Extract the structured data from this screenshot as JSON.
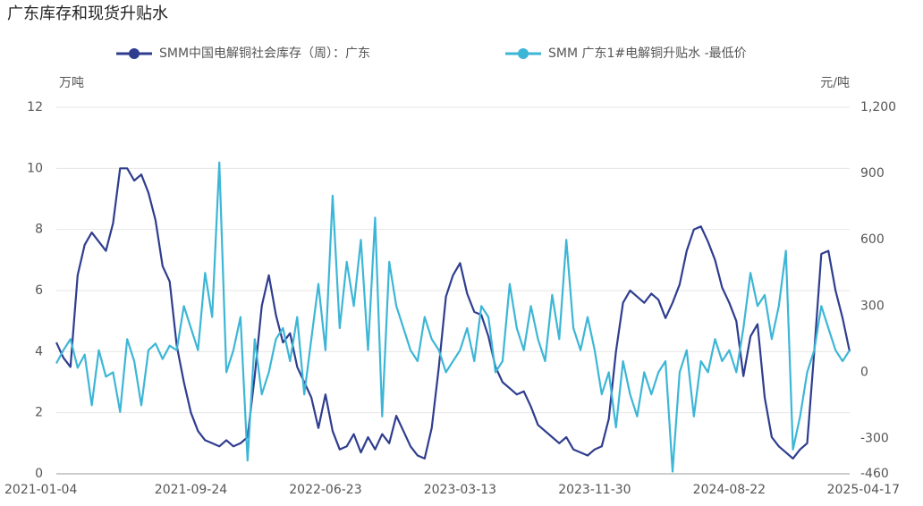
{
  "chart_data": {
    "type": "line",
    "title": "广东库存和现货升贴水",
    "ylabel": "万吨",
    "y2label": "元/吨",
    "categories": [
      "2021-01-04",
      null,
      null,
      null,
      null,
      null,
      null,
      null,
      null,
      null,
      null,
      null,
      null,
      null,
      null,
      null,
      null,
      null,
      null,
      "2021-09-24",
      null,
      null,
      null,
      null,
      null,
      null,
      null,
      null,
      null,
      null,
      null,
      null,
      null,
      null,
      null,
      null,
      null,
      null,
      "2022-06-23",
      null,
      null,
      null,
      null,
      null,
      null,
      null,
      null,
      null,
      null,
      null,
      null,
      null,
      null,
      null,
      null,
      null,
      null,
      "2023-03-13",
      null,
      null,
      null,
      null,
      null,
      null,
      null,
      null,
      null,
      null,
      null,
      null,
      null,
      null,
      null,
      null,
      null,
      null,
      "2023-11-30",
      null,
      null,
      null,
      null,
      null,
      null,
      null,
      null,
      null,
      null,
      null,
      null,
      null,
      null,
      null,
      null,
      null,
      null,
      "2024-08-22",
      null,
      null,
      null,
      null,
      null,
      null,
      null,
      null,
      null,
      null,
      null,
      null,
      null,
      null,
      null,
      null,
      "2025-04-17"
    ],
    "series": [
      {
        "name": "SMM中国电解铜社会库存（周）：广东",
        "color": "#2f3d8f",
        "values": [
          4.3,
          3.8,
          3.5,
          6.5,
          7.5,
          7.9,
          7.6,
          7.3,
          8.2,
          10.0,
          10.0,
          9.6,
          9.8,
          9.2,
          8.3,
          6.8,
          6.3,
          4.2,
          3.0,
          2.0,
          1.4,
          1.1,
          1.0,
          0.9,
          1.1,
          0.9,
          1.0,
          1.2,
          3.2,
          5.5,
          6.5,
          5.2,
          4.3,
          4.6,
          3.5,
          3.0,
          2.5,
          1.5,
          2.6,
          1.4,
          0.8,
          0.9,
          1.3,
          0.7,
          1.2,
          0.8,
          1.3,
          1.0,
          1.9,
          1.4,
          0.9,
          0.6,
          0.5,
          1.5,
          3.5,
          5.8,
          6.5,
          6.9,
          5.9,
          5.3,
          5.2,
          4.5,
          3.5,
          3.0,
          2.8,
          2.6,
          2.7,
          2.2,
          1.6,
          1.4,
          1.2,
          1.0,
          1.2,
          0.8,
          0.7,
          0.6,
          0.8,
          0.9,
          1.8,
          4.0,
          5.6,
          6.0,
          5.8,
          5.6,
          5.9,
          5.7,
          5.1,
          5.6,
          6.2,
          7.3,
          8.0,
          8.1,
          7.6,
          7.0,
          6.1,
          5.6,
          5.0,
          3.2,
          4.5,
          4.9,
          2.5,
          1.2,
          0.9,
          0.7,
          0.5,
          0.8,
          1.0,
          4.0,
          7.2,
          7.3,
          6.0,
          5.1,
          4.0
        ]
      },
      {
        "name": "SMM 广东1#电解铜升贴水 -最低价",
        "color": "#3db6d6",
        "axis": "y2",
        "values": [
          40,
          100,
          150,
          20,
          80,
          -150,
          100,
          -20,
          0,
          -180,
          150,
          50,
          -150,
          100,
          130,
          60,
          120,
          100,
          300,
          200,
          100,
          450,
          250,
          950,
          0,
          100,
          250,
          -400,
          150,
          -100,
          0,
          150,
          200,
          50,
          250,
          -100,
          150,
          400,
          100,
          800,
          200,
          500,
          300,
          600,
          100,
          700,
          -200,
          500,
          300,
          200,
          100,
          50,
          250,
          150,
          100,
          0,
          50,
          100,
          200,
          50,
          300,
          250,
          0,
          50,
          400,
          200,
          100,
          300,
          150,
          50,
          350,
          150,
          600,
          200,
          100,
          250,
          100,
          -100,
          0,
          -250,
          50,
          -100,
          -200,
          0,
          -100,
          0,
          50,
          -450,
          0,
          100,
          -200,
          50,
          0,
          150,
          50,
          100,
          0,
          200,
          450,
          300,
          350,
          150,
          300,
          550,
          -350,
          -200,
          0,
          100,
          300,
          200,
          100,
          50,
          100
        ]
      }
    ],
    "ylim": [
      0,
      12
    ],
    "yticks": [
      0,
      2,
      4,
      6,
      8,
      10,
      12
    ],
    "y2lim": [
      -460,
      1200
    ],
    "y2ticks": [
      -460,
      -300,
      0,
      300,
      600,
      900,
      {
        "value": 1200,
        "label": "1,200"
      }
    ],
    "grid": true,
    "legend": "top"
  }
}
